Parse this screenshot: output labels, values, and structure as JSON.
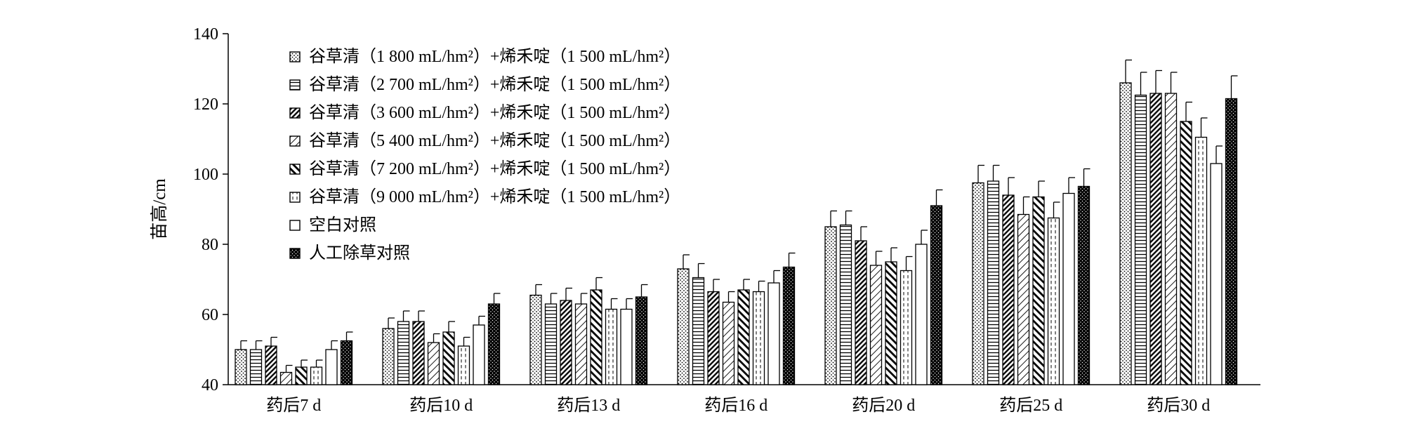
{
  "chart_data": {
    "type": "bar",
    "title": "",
    "xlabel": "",
    "ylabel": "苗高/cm",
    "ylim": [
      40,
      140
    ],
    "yticks": [
      40,
      60,
      80,
      100,
      120,
      140
    ],
    "grid": false,
    "legend_position": "top-left",
    "categories": [
      "药后7 d",
      "药后10 d",
      "药后13 d",
      "药后16 d",
      "药后20 d",
      "药后25 d",
      "药后30 d"
    ],
    "series": [
      {
        "name": "谷草清（1 800 mL/hm²）+烯禾啶（1 500 mL/hm²）",
        "pattern": "dots",
        "values": [
          50,
          56,
          65.5,
          73,
          85,
          97.5,
          126
        ],
        "errors": [
          2.5,
          3,
          3,
          4,
          4.5,
          5,
          6.5
        ]
      },
      {
        "name": "谷草清（2 700 mL/hm²）+烯禾啶（1 500 mL/hm²）",
        "pattern": "hlines",
        "values": [
          50,
          58,
          63,
          70.5,
          85.5,
          98,
          122.5
        ],
        "errors": [
          2.5,
          3,
          3,
          4,
          4,
          4.5,
          6.5
        ]
      },
      {
        "name": "谷草清（3 600 mL/hm²）+烯禾啶（1 500 mL/hm²）",
        "pattern": "dense-diag",
        "values": [
          51,
          58,
          64,
          66.5,
          81,
          94,
          123
        ],
        "errors": [
          2.5,
          3,
          3.5,
          3.5,
          4,
          5,
          6.5
        ]
      },
      {
        "name": "谷草清（5 400 mL/hm²）+烯禾啶（1 500 mL/hm²）",
        "pattern": "light-diag",
        "values": [
          43.5,
          52,
          63,
          63.5,
          74,
          88.5,
          123
        ],
        "errors": [
          2,
          2.5,
          3,
          3,
          4,
          5,
          6
        ]
      },
      {
        "name": "谷草清（7 200 mL/hm²）+烯禾啶（1 500 mL/hm²）",
        "pattern": "back-diag",
        "values": [
          45,
          55,
          67,
          67,
          75,
          93.5,
          115
        ],
        "errors": [
          2,
          3,
          3.5,
          3,
          4,
          4.5,
          5.5
        ]
      },
      {
        "name": "谷草清（9 000 mL/hm²）+烯禾啶（1 500 mL/hm²）",
        "pattern": "dashed-vlines",
        "values": [
          45,
          51,
          61.5,
          66.5,
          72.5,
          87.5,
          110.5
        ],
        "errors": [
          2,
          2.5,
          3,
          3,
          4,
          4.5,
          5.5
        ]
      },
      {
        "name": "空白对照",
        "pattern": "empty",
        "values": [
          50,
          57,
          61.5,
          69,
          80,
          94.5,
          103
        ],
        "errors": [
          2.5,
          2.5,
          3,
          3.5,
          4,
          4.5,
          5
        ]
      },
      {
        "name": "人工除草对照",
        "pattern": "black-dots",
        "values": [
          52.5,
          63,
          65,
          73.5,
          91,
          96.5,
          121.5
        ],
        "errors": [
          2.5,
          3,
          3.5,
          4,
          4.5,
          5,
          6.5
        ]
      }
    ]
  }
}
